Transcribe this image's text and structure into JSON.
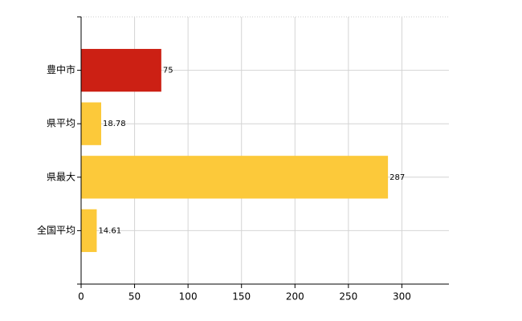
{
  "chart_data": {
    "type": "hbar",
    "categories": [
      "豊中市",
      "県平均",
      "県最大",
      "全国平均"
    ],
    "values": [
      75,
      18.78,
      287,
      14.61
    ],
    "colors": [
      "#cc2014",
      "#fcc93a",
      "#fcc93a",
      "#fcc93a"
    ],
    "xlim": [
      0,
      344
    ],
    "xticks": [
      0,
      50,
      100,
      150,
      200,
      250,
      300
    ],
    "grid": true
  }
}
